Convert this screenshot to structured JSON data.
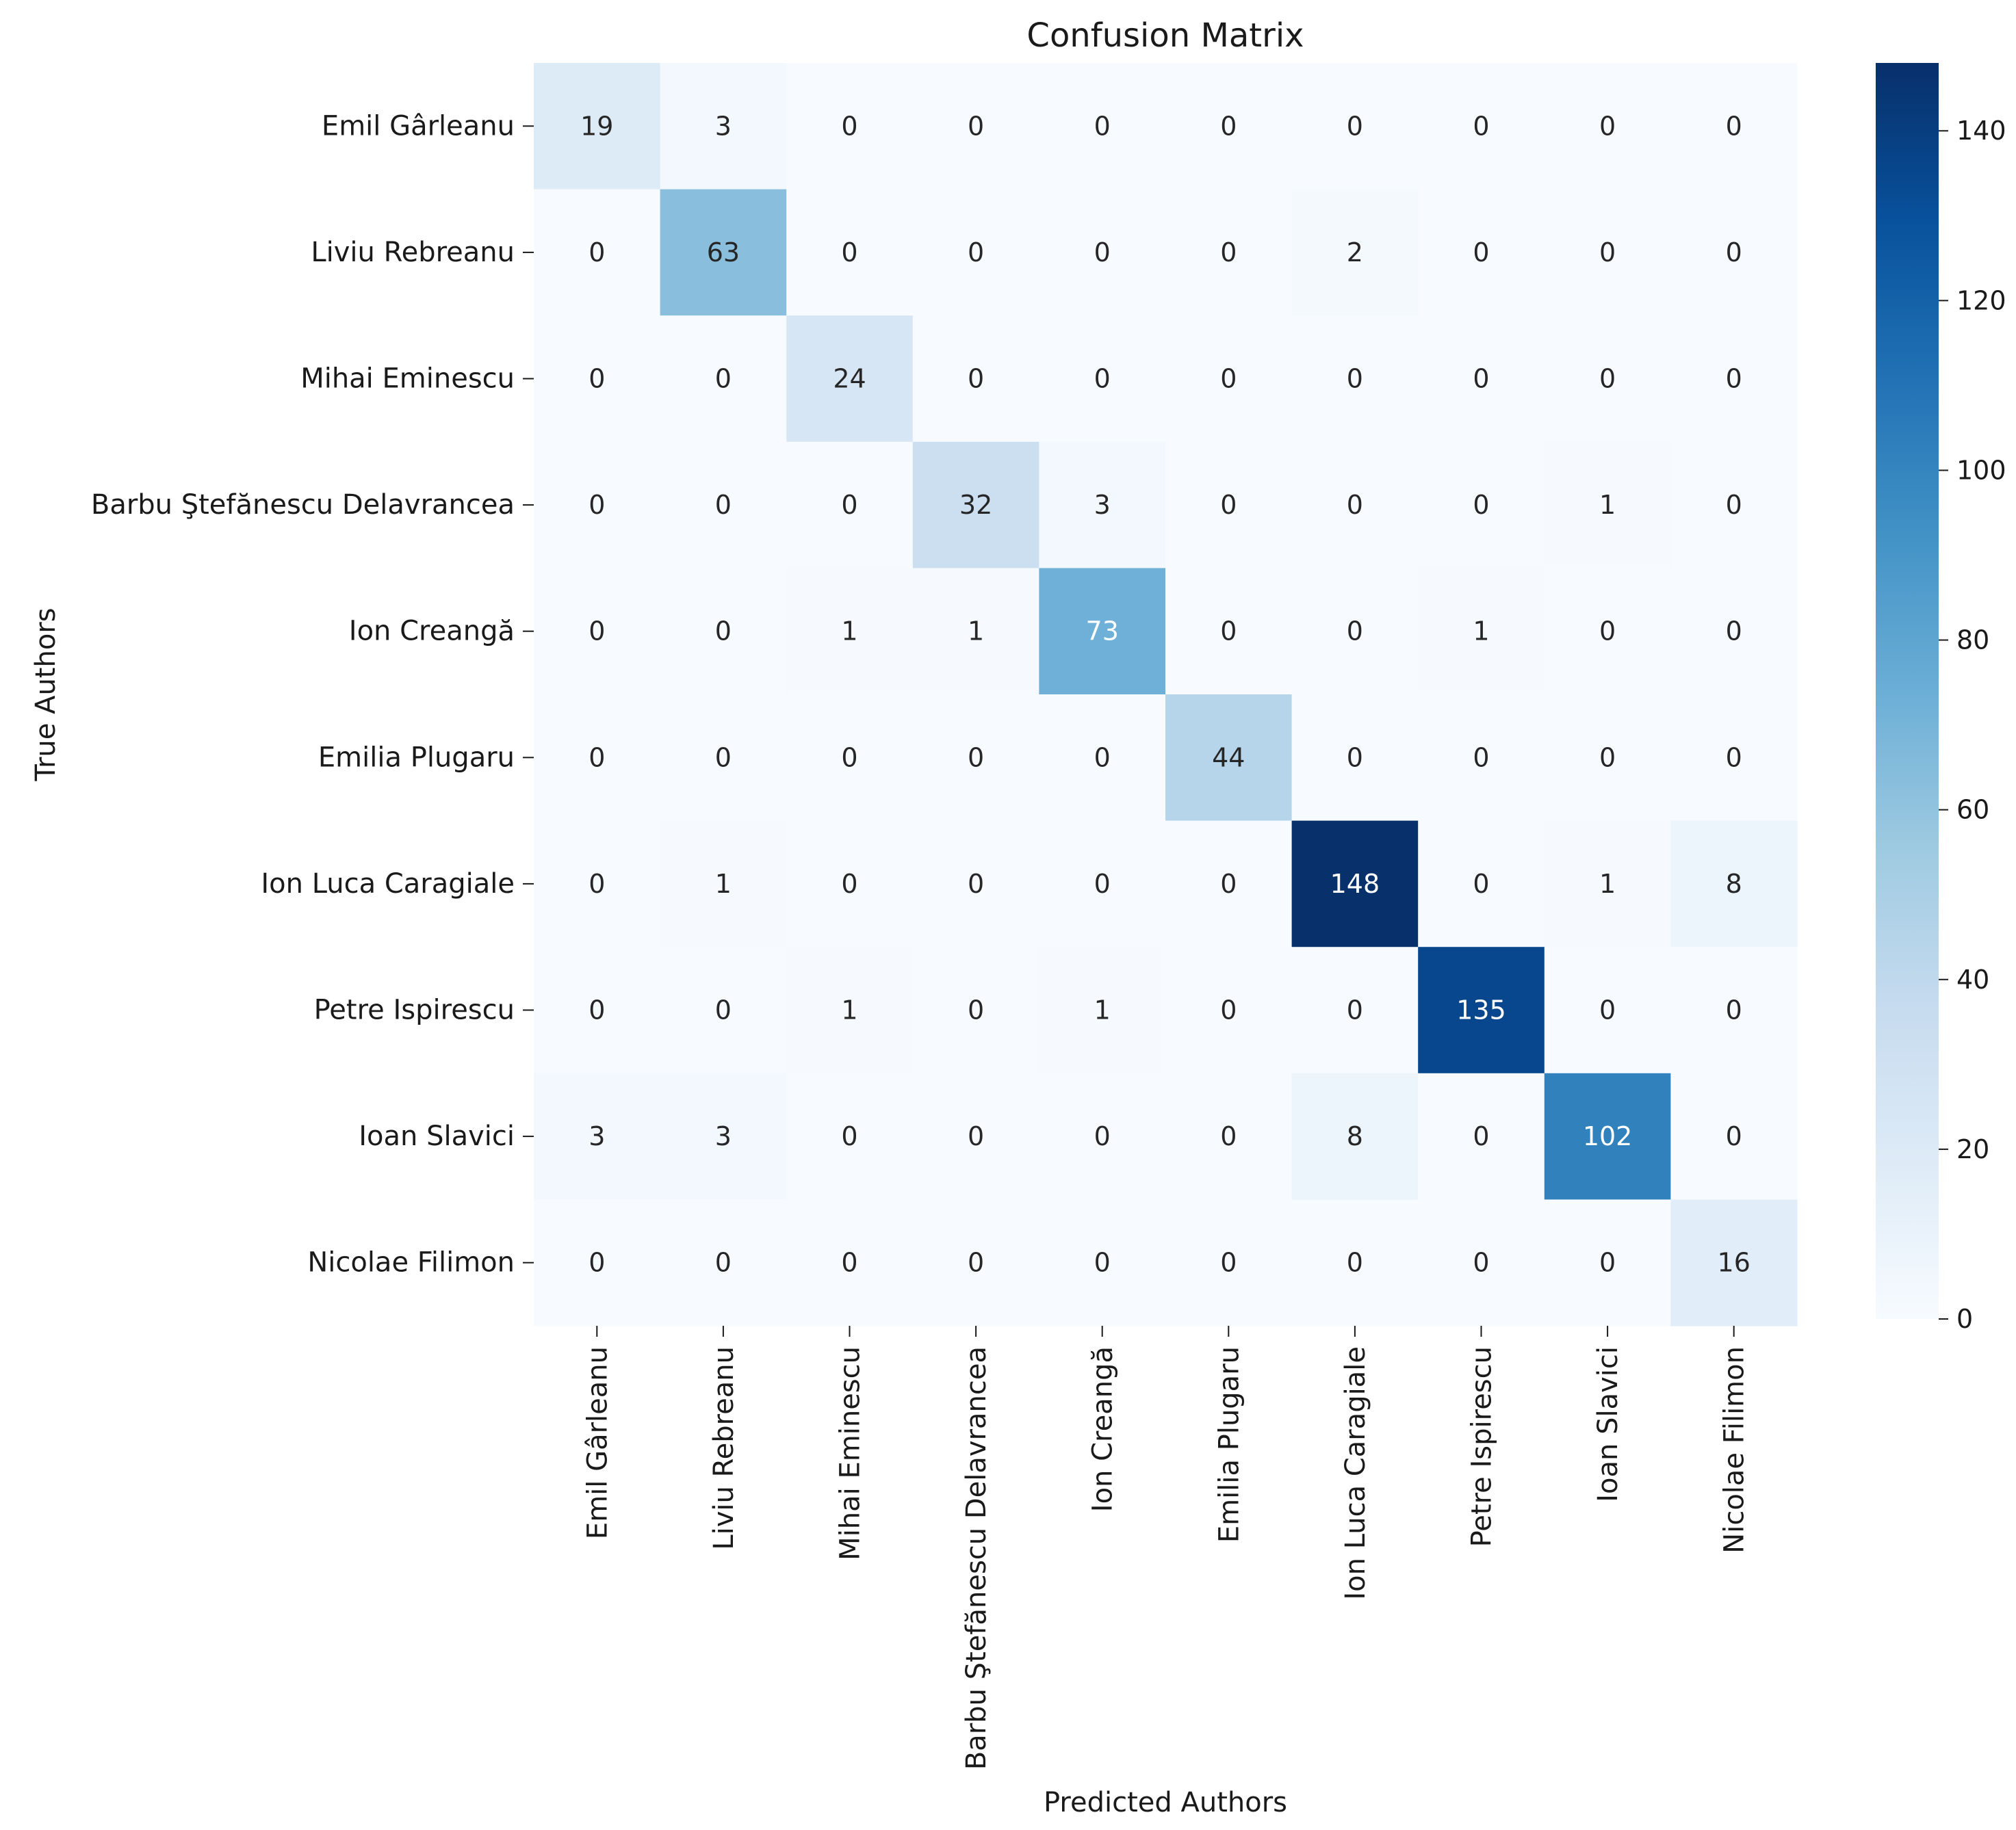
{
  "chart_data": {
    "type": "heatmap",
    "title": "Confusion Matrix",
    "xlabel": "Predicted Authors",
    "ylabel": "True Authors",
    "row_labels": [
      "Emil Gârleanu",
      "Liviu Rebreanu",
      "Mihai Eminescu",
      "Barbu Ştefănescu Delavrancea",
      "Ion Creangă",
      "Emilia Plugaru",
      "Ion Luca Caragiale",
      "Petre Ispirescu",
      "Ioan Slavici",
      "Nicolae Filimon"
    ],
    "col_labels": [
      "Emil Gârleanu",
      "Liviu Rebreanu",
      "Mihai Eminescu",
      "Barbu Ştefănescu Delavrancea",
      "Ion Creangă",
      "Emilia Plugaru",
      "Ion Luca Caragiale",
      "Petre Ispirescu",
      "Ioan Slavici",
      "Nicolae Filimon"
    ],
    "values": [
      [
        19,
        3,
        0,
        0,
        0,
        0,
        0,
        0,
        0,
        0
      ],
      [
        0,
        63,
        0,
        0,
        0,
        0,
        2,
        0,
        0,
        0
      ],
      [
        0,
        0,
        24,
        0,
        0,
        0,
        0,
        0,
        0,
        0
      ],
      [
        0,
        0,
        0,
        32,
        3,
        0,
        0,
        0,
        1,
        0
      ],
      [
        0,
        0,
        1,
        1,
        73,
        0,
        0,
        1,
        0,
        0
      ],
      [
        0,
        0,
        0,
        0,
        0,
        44,
        0,
        0,
        0,
        0
      ],
      [
        0,
        1,
        0,
        0,
        0,
        0,
        148,
        0,
        1,
        8
      ],
      [
        0,
        0,
        1,
        0,
        1,
        0,
        0,
        135,
        0,
        0
      ],
      [
        3,
        3,
        0,
        0,
        0,
        0,
        8,
        0,
        102,
        0
      ],
      [
        0,
        0,
        0,
        0,
        0,
        0,
        0,
        0,
        0,
        16
      ]
    ],
    "colormap": "Blues",
    "vmin": 0,
    "vmax": 148,
    "colorbar_ticks": [
      0,
      20,
      40,
      60,
      80,
      100,
      120,
      140
    ]
  }
}
